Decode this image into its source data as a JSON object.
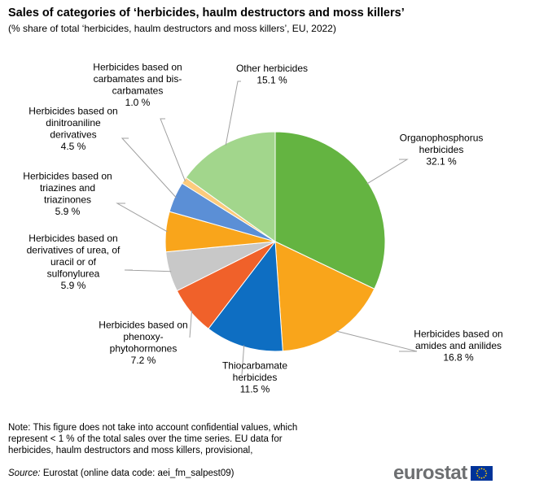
{
  "header": {
    "title": "Sales of categories of ‘herbicides, haulm destructors and moss killers’",
    "subtitle": "(% share of total ‘herbicides, haulm destructors and moss killers’, EU, 2022)"
  },
  "chart_data": {
    "type": "pie",
    "unit": "%",
    "slices": [
      {
        "name": "Organophosphorus herbicides",
        "label_lines": [
          "Organophosphorus",
          "herbicides"
        ],
        "value_text": "32.1 %",
        "value": 32.1,
        "color": "#64b441"
      },
      {
        "name": "Herbicides based on amides and anilides",
        "label_lines": [
          "Herbicides based on",
          "amides and anilides"
        ],
        "value_text": "16.8 %",
        "value": 16.8,
        "color": "#f9a51b"
      },
      {
        "name": "Thiocarbamate herbicides",
        "label_lines": [
          "Thiocarbamate",
          "herbicides"
        ],
        "value_text": "11.5 %",
        "value": 11.5,
        "color": "#0e6ec2"
      },
      {
        "name": "Herbicides based on phenoxy-phytohormones",
        "label_lines": [
          "Herbicides based on",
          "phenoxy-",
          "phytohormones"
        ],
        "value_text": "7.2 %",
        "value": 7.2,
        "color": "#f0612a"
      },
      {
        "name": "Herbicides based on derivatives of urea, of uracil or of sulfonylurea",
        "label_lines": [
          "Herbicides based on",
          "derivatives  of urea, of",
          "uracil or of",
          "sulfonylurea"
        ],
        "value_text": "5.9 %",
        "value": 5.9,
        "color": "#c8c8c8"
      },
      {
        "name": "Herbicides based on triazines and triazinones",
        "label_lines": [
          "Herbicides based on",
          "triazines and",
          "triazinones"
        ],
        "value_text": "5.9 %",
        "value": 5.9,
        "color": "#f9a51b"
      },
      {
        "name": "Herbicides based on dinitroaniline derivatives",
        "label_lines": [
          "Herbicides based on",
          "dinitroaniline",
          "derivatives"
        ],
        "value_text": "4.5 %",
        "value": 4.5,
        "color": "#5b8fd6"
      },
      {
        "name": "Herbicides based on carbamates and bis-carbamates",
        "label_lines": [
          "Herbicides based on",
          "carbamates and bis-",
          "carbamates"
        ],
        "value_text": "1.0 %",
        "value": 1.0,
        "color": "#fdcb7c"
      },
      {
        "name": "Other herbicides",
        "label_lines": [
          "Other herbicides"
        ],
        "value_text": "15.1 %",
        "value": 15.1,
        "color": "#a2d68c"
      }
    ]
  },
  "footer": {
    "note": "Note: This figure  does not take into account confidential values,  which represent  < 1 % of the total sales over the time series. EU data for herbicides, haulm destructors and moss killers, provisional,",
    "source_lead": "Source:",
    "source_text": " Eurostat (online data code: aei_fm_salpest09)",
    "logo_text": "eurostat",
    "flag_color": "#003399",
    "star_color": "#ffcc00"
  }
}
